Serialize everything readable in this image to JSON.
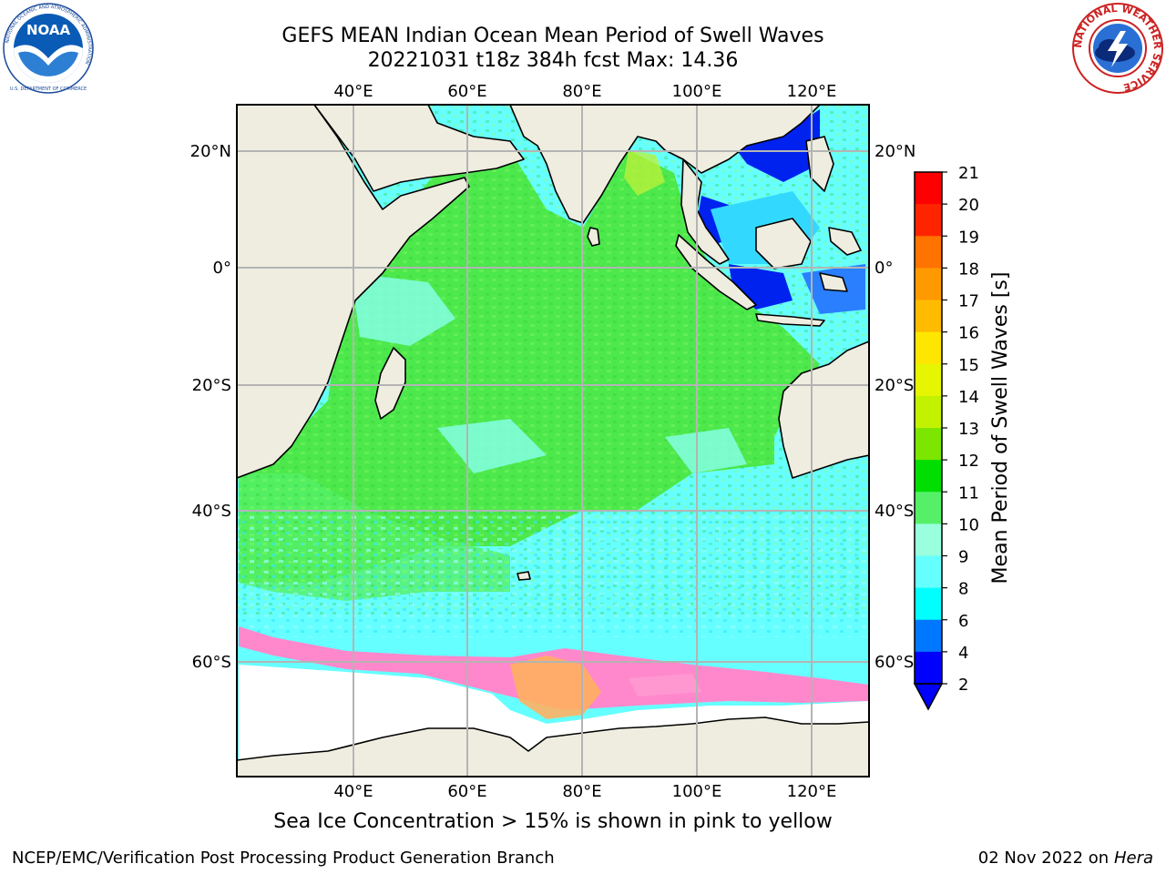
{
  "header": {
    "title_line1": "GEFS MEAN Indian Ocean Mean Period of Swell Waves",
    "title_line2": "20221031 t18z 384h fcst   Max: 14.36"
  },
  "logos": {
    "left": "NOAA",
    "left_ring_text": "NATIONAL OCEANIC AND ATMOSPHERIC ADMINISTRATION",
    "left_bottom_text": "U.S. DEPARTMENT OF COMMERCE",
    "right_ring_text": "NATIONAL WEATHER SERVICE"
  },
  "map": {
    "lon_labels_top": [
      "40°E",
      "60°E",
      "80°E",
      "100°E",
      "120°E"
    ],
    "lon_labels_bottom": [
      "40°E",
      "60°E",
      "80°E",
      "100°E",
      "120°E"
    ],
    "lat_labels_left": [
      "20°N",
      "0°",
      "20°S",
      "40°S",
      "60°S"
    ],
    "lat_labels_right": [
      "20°N",
      "0°",
      "20°S",
      "40°S",
      "60°S"
    ],
    "colors": {
      "land": "#efede0",
      "ocean_green": "#4ce84c",
      "ocean_cyan": "#66ffff",
      "sea_ice": "#ff88cc",
      "sea_ice_warm": "#ffb060",
      "grid": "#b4b4b4"
    }
  },
  "colorbar": {
    "label": "Mean Period of Swell Waves [s]",
    "ticks": [
      "21",
      "20",
      "19",
      "18",
      "17",
      "16",
      "15",
      "14",
      "13",
      "12",
      "11",
      "10",
      "9",
      "8",
      "6",
      "4",
      "2"
    ],
    "colors": [
      "#ff0000",
      "#ff2400",
      "#ff4900",
      "#ff7300",
      "#ff9900",
      "#ffbb00",
      "#ffe600",
      "#fff71c",
      "#e6f500",
      "#c2f200",
      "#7de600",
      "#00dd00",
      "#00f000",
      "#55f068",
      "#99ffdd",
      "#66ffff",
      "#00ffff",
      "#00d8ff",
      "#0077ff",
      "#0000ff"
    ]
  },
  "footer": {
    "caption": "Sea Ice Concentration > 15% is shown in pink to yellow",
    "credit": "NCEP/EMC/Verification Post Processing Product Generation Branch",
    "date": "02 Nov 2022 on",
    "host": "Hera"
  }
}
